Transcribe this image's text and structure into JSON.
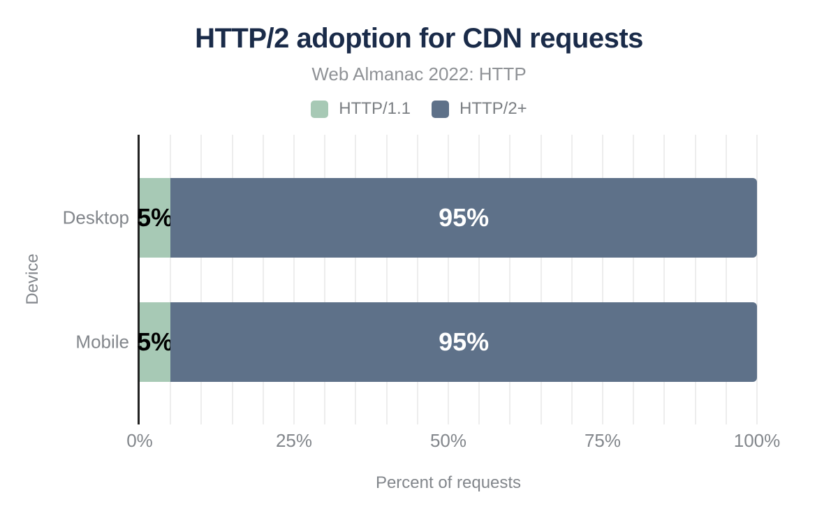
{
  "chart_data": {
    "type": "bar",
    "orientation": "horizontal",
    "stacked": true,
    "title": "HTTP/2 adoption for CDN requests",
    "subtitle": "Web Almanac 2022: HTTP",
    "categories": [
      "Desktop",
      "Mobile"
    ],
    "series": [
      {
        "name": "HTTP/1.1",
        "color": "#a7c9b5",
        "values": [
          5,
          5
        ],
        "label_color": "#000000"
      },
      {
        "name": "HTTP/2+",
        "color": "#5e7189",
        "values": [
          95,
          95
        ],
        "label_color": "#ffffff"
      }
    ],
    "bar_labels": [
      [
        "5%",
        "95%"
      ],
      [
        "5%",
        "95%"
      ]
    ],
    "xlabel": "Percent of requests",
    "ylabel": "Device",
    "xlim": [
      0,
      100
    ],
    "x_ticks": [
      {
        "value": 0,
        "label": "0%"
      },
      {
        "value": 25,
        "label": "25%"
      },
      {
        "value": 50,
        "label": "50%"
      },
      {
        "value": 75,
        "label": "75%"
      },
      {
        "value": 100,
        "label": "100%"
      }
    ],
    "grid": {
      "show": true,
      "interval": 5
    },
    "legend_position": "top"
  },
  "colors": {
    "background": "#ffffff",
    "title": "#1a2b49",
    "subtitle": "#8f9296",
    "legend_text": "#7a7e82",
    "axis_text": "#82868b",
    "grid_line": "#ededed",
    "axis_line": "#222222"
  }
}
